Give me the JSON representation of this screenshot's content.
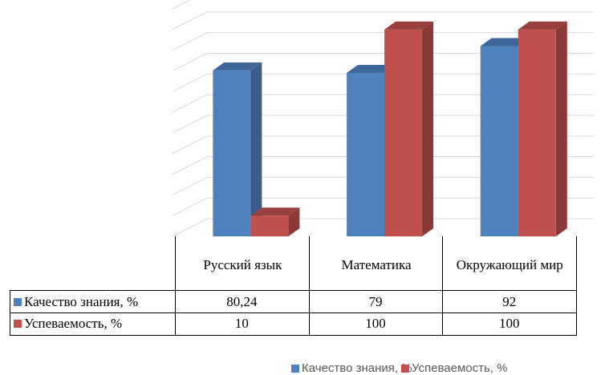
{
  "chart_data": {
    "type": "bar3d",
    "categories": [
      "Русский язык",
      "Математика",
      "Окружающий мир"
    ],
    "series": [
      {
        "name": "Качество знания, %",
        "color": "#4f81bd",
        "values": [
          80.24,
          79,
          92
        ],
        "value_labels": [
          "80,24",
          "79",
          "92"
        ]
      },
      {
        "name": "Успеваемость, %",
        "color": "#c0504d",
        "values": [
          10,
          100,
          100
        ]
      }
    ],
    "ylim": [
      0,
      110
    ],
    "yticks": [
      0,
      10,
      20,
      30,
      40,
      50,
      60,
      70,
      80,
      90,
      100,
      110
    ],
    "grid": true
  }
}
